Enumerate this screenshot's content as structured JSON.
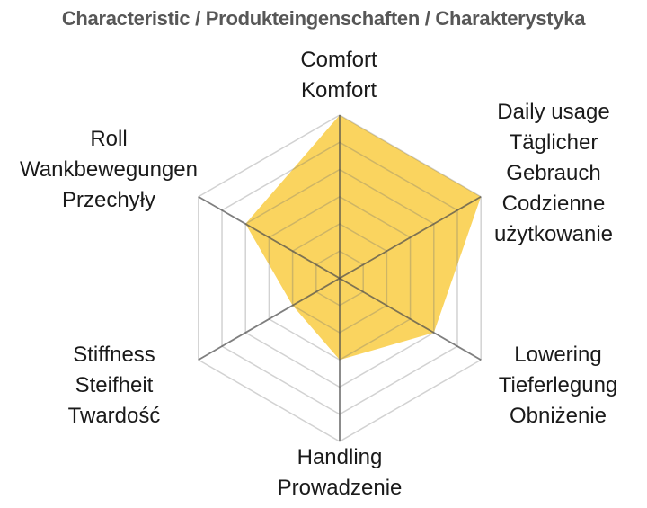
{
  "title": "Characteristic / Produkteingenschaften / Charakterystyka",
  "chart_data": {
    "type": "radar",
    "title": "Characteristic / Produkteingenschaften / Charakterystyka",
    "max": 6,
    "rings": 6,
    "grid": true,
    "legend": false,
    "axes": [
      {
        "name": "comfort",
        "lines": [
          "Comfort",
          "Komfort"
        ],
        "value": 6
      },
      {
        "name": "daily-usage",
        "lines": [
          "Daily usage",
          "Täglicher",
          "Gebrauch",
          "Codzienne",
          "użytkowanie"
        ],
        "value": 6
      },
      {
        "name": "lowering",
        "lines": [
          "Lowering",
          "Tieferlegung",
          "Obniżenie"
        ],
        "value": 4
      },
      {
        "name": "handling",
        "lines": [
          "Handling",
          "Prowadzenie"
        ],
        "value": 3
      },
      {
        "name": "stiffness",
        "lines": [
          "Stiffness",
          "Steifheit",
          "Twardość"
        ],
        "value": 2
      },
      {
        "name": "roll",
        "lines": [
          "Roll",
          "Wankbewegungen",
          "Przechyły"
        ],
        "value": 4
      }
    ],
    "series": [
      {
        "name": "product-characteristic",
        "values": [
          6,
          6,
          4,
          3,
          2,
          4
        ]
      }
    ]
  },
  "colors": {
    "background": "#FFFFFF",
    "series_fill": "#FAD45F",
    "ring_line": "#737373",
    "axis_line": "#4D4D4D",
    "title_text": "#575757",
    "label_text": "#1A1A1A"
  }
}
